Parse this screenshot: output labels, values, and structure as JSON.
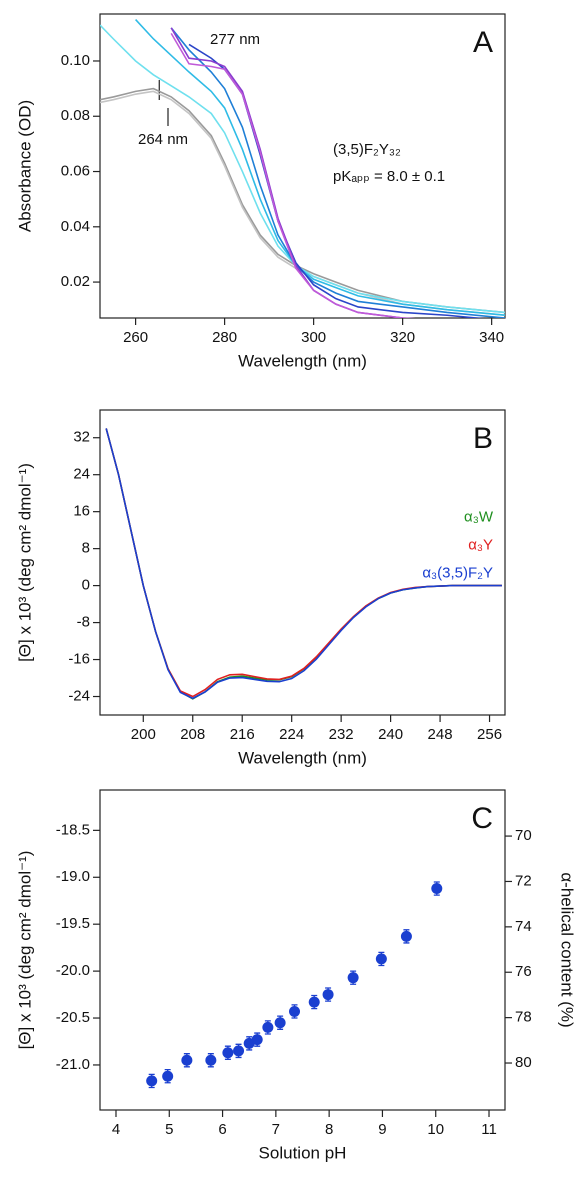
{
  "chart_data": [
    {
      "type": "line",
      "title": "A",
      "xlabel": "Wavelength (nm)",
      "ylabel": "Absorbance (OD)",
      "annotations": [
        "277 nm",
        "264 nm",
        "(3,5)F₂Y₃₂",
        "pKₐₚₚ = 8.0 ± 0.1"
      ],
      "xlim": [
        252,
        343
      ],
      "xticks": [
        260,
        280,
        300,
        320,
        340
      ],
      "ylim": [
        0.007,
        0.117
      ],
      "yticks": [
        {
          "value": 0.02,
          "label": "0.02"
        },
        {
          "value": 0.04,
          "label": "0.04"
        },
        {
          "value": 0.06,
          "label": "0.06"
        },
        {
          "value": 0.08,
          "label": "0.08"
        },
        {
          "value": 0.1,
          "label": "0.10"
        }
      ],
      "x": [
        252,
        255,
        260,
        264,
        268,
        272,
        277,
        280,
        284,
        288,
        292,
        296,
        300,
        305,
        310,
        320,
        330,
        343
      ],
      "series": [
        {
          "color": "#9a9a9a",
          "values": [
            0.086,
            0.087,
            0.089,
            0.09,
            0.087,
            0.082,
            0.073,
            0.063,
            0.048,
            0.037,
            0.03,
            0.026,
            0.023,
            0.02,
            0.017,
            0.013,
            0.011,
            0.009
          ]
        },
        {
          "color": "#c4c4c4",
          "values": [
            0.085,
            0.086,
            0.088,
            0.089,
            0.086,
            0.081,
            0.072,
            0.062,
            0.047,
            0.036,
            0.029,
            0.025,
            0.022,
            0.019,
            0.016,
            0.012,
            0.01,
            0.008
          ]
        },
        {
          "color": "#6fe0ee",
          "values": [
            0.113,
            0.108,
            0.1,
            0.095,
            0.091,
            0.087,
            0.081,
            0.074,
            0.06,
            0.045,
            0.033,
            0.026,
            0.022,
            0.019,
            0.016,
            0.013,
            0.011,
            0.009
          ]
        },
        {
          "color": "#2fbbe6",
          "values": [
            null,
            null,
            0.115,
            0.108,
            0.102,
            0.096,
            0.089,
            0.083,
            0.068,
            0.05,
            0.035,
            0.026,
            0.021,
            0.018,
            0.015,
            0.012,
            0.01,
            0.008
          ]
        },
        {
          "color": "#1f7fd6",
          "values": [
            null,
            null,
            null,
            null,
            0.112,
            0.104,
            0.096,
            0.09,
            0.076,
            0.055,
            0.037,
            0.026,
            0.02,
            0.016,
            0.013,
            0.011,
            0.009,
            0.007
          ]
        },
        {
          "color": "#2b45c8",
          "values": [
            null,
            null,
            null,
            null,
            null,
            0.106,
            0.101,
            0.097,
            0.088,
            0.066,
            0.042,
            0.027,
            0.019,
            0.014,
            0.011,
            0.009,
            0.008,
            0.006
          ]
        },
        {
          "color": "#8a3ccf",
          "values": [
            null,
            null,
            null,
            null,
            0.112,
            0.101,
            0.1,
            0.098,
            0.089,
            0.068,
            0.043,
            0.026,
            0.017,
            0.012,
            0.009,
            0.007,
            0.006,
            0.005
          ]
        },
        {
          "color": "#c05ad8",
          "values": [
            null,
            null,
            null,
            null,
            0.11,
            0.099,
            0.098,
            0.097,
            0.088,
            0.067,
            0.042,
            0.025,
            0.017,
            0.012,
            0.009,
            0.007,
            0.006,
            0.005
          ]
        }
      ]
    },
    {
      "type": "line",
      "title": "B",
      "xlabel": "Wavelength (nm)",
      "ylabel": "[Θ] x 10³ (deg cm² dmol⁻¹)",
      "legend": "right",
      "xlim": [
        193,
        258.5
      ],
      "xticks": [
        200,
        208,
        216,
        224,
        232,
        240,
        248,
        256
      ],
      "ylim": [
        -28,
        38
      ],
      "yticks": [
        -24,
        -16,
        -8,
        0,
        8,
        16,
        24,
        32
      ],
      "x": [
        194,
        196,
        198,
        200,
        202,
        204,
        206,
        208,
        210,
        212,
        214,
        216,
        218,
        220,
        222,
        224,
        226,
        228,
        230,
        232,
        234,
        236,
        238,
        240,
        242,
        244,
        246,
        248,
        250,
        252,
        254,
        256,
        258
      ],
      "series": [
        {
          "name": "α₃W",
          "color": "#1f8f1f",
          "values": [
            34,
            24,
            12,
            0,
            -10,
            -18,
            -23,
            -24.5,
            -23,
            -20.8,
            -19.8,
            -19.6,
            -20,
            -20.4,
            -20.4,
            -19.7,
            -18,
            -15.5,
            -12.5,
            -9.5,
            -6.8,
            -4.5,
            -2.8,
            -1.6,
            -0.9,
            -0.5,
            -0.2,
            -0.1,
            0,
            0,
            0,
            0,
            0
          ]
        },
        {
          "name": "α₃Y",
          "color": "#e02020",
          "values": [
            34,
            24,
            12,
            0,
            -10,
            -18,
            -22.8,
            -24,
            -22.5,
            -20.3,
            -19.3,
            -19.2,
            -19.7,
            -20.2,
            -20.3,
            -19.6,
            -17.9,
            -15.4,
            -12.4,
            -9.4,
            -6.7,
            -4.4,
            -2.7,
            -1.5,
            -0.8,
            -0.4,
            -0.2,
            -0.1,
            0,
            0,
            0,
            0,
            0
          ]
        },
        {
          "name": "α₃(3,5)F₂Y",
          "color": "#1a3fd0",
          "values": [
            34,
            24,
            12,
            0,
            -10,
            -18.2,
            -23.1,
            -24.4,
            -23,
            -20.9,
            -20,
            -19.9,
            -20.3,
            -20.7,
            -20.8,
            -20.1,
            -18.4,
            -15.9,
            -12.8,
            -9.7,
            -6.9,
            -4.6,
            -2.8,
            -1.6,
            -0.9,
            -0.5,
            -0.2,
            -0.1,
            0,
            0,
            0,
            0,
            0
          ]
        }
      ]
    },
    {
      "type": "scatter",
      "title": "C",
      "xlabel": "Solution pH",
      "ylabel": "[Θ] x 10³ (deg cm² dmol⁻¹)",
      "y2label": "α-helical content (%)",
      "xlim": [
        3.7,
        11.3
      ],
      "xticks": [
        4,
        5,
        6,
        7,
        8,
        9,
        10,
        11
      ],
      "ylim": [
        -21.48,
        -18.07
      ],
      "yticks": [
        {
          "value": -21,
          "label": "-21.0"
        },
        -20.5,
        {
          "value": -20,
          "label": "-20.0"
        },
        -19.5,
        {
          "value": -19,
          "label": "-19.0"
        },
        -18.5
      ],
      "y2lim": [
        82.07,
        67.97
      ],
      "y2ticks": [
        70,
        72,
        74,
        76,
        78,
        80
      ],
      "series": [
        {
          "color": "#1a3fd0",
          "x": [
            4.67,
            4.97,
            5.33,
            5.78,
            6.1,
            6.3,
            6.5,
            6.65,
            6.85,
            7.08,
            7.35,
            7.72,
            7.98,
            8.45,
            8.98,
            9.45,
            10.02
          ],
          "values": [
            -21.17,
            -21.12,
            -20.95,
            -20.95,
            -20.87,
            -20.85,
            -20.77,
            -20.73,
            -20.6,
            -20.55,
            -20.43,
            -20.33,
            -20.25,
            -20.07,
            -19.87,
            -19.63,
            -19.12
          ],
          "errors": [
            0.07,
            0.07,
            0.07,
            0.07,
            0.07,
            0.07,
            0.07,
            0.07,
            0.07,
            0.07,
            0.07,
            0.07,
            0.07,
            0.07,
            0.07,
            0.07,
            0.07
          ]
        }
      ]
    }
  ]
}
